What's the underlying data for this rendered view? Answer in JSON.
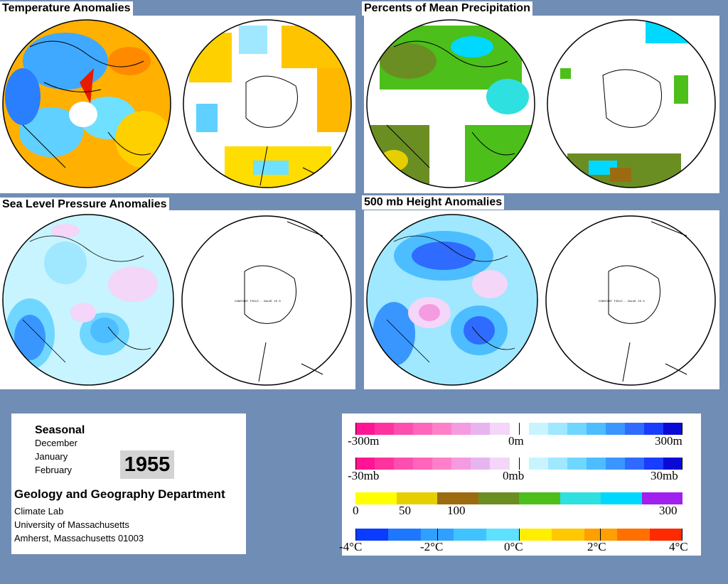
{
  "panels": {
    "temperature": {
      "title": "Temperature Anomalies"
    },
    "precipitation": {
      "title": "Percents of Mean Precipitation"
    },
    "slp": {
      "title": "Sea Level Pressure Anomalies",
      "south_note": "CONSTANT FIELD - VALUE IS 0"
    },
    "height500": {
      "title": "500 mb Height Anomalies",
      "south_note": "CONSTANT FIELD - VALUE IS 0"
    }
  },
  "info": {
    "period": "Seasonal",
    "months": [
      "December",
      "January",
      "February"
    ],
    "year": "1955",
    "department": "Geology and Geography Department",
    "address": [
      "Climate Lab",
      "University of Massachusetts",
      "Amherst, Massachusetts 01003"
    ]
  },
  "legend": {
    "height_bar": {
      "labels": [
        "-300m",
        "0m",
        "300m"
      ]
    },
    "pressure_bar": {
      "labels": [
        "-30mb",
        "0mb",
        "30mb"
      ]
    },
    "precip_bar": {
      "labels": [
        "0",
        "50",
        "100",
        "300"
      ]
    },
    "temp_bar": {
      "labels": [
        "-4°C",
        "-2°C",
        "0°C",
        "2°C",
        "4°C"
      ]
    },
    "colors": {
      "background": "#6f8db5",
      "anomaly_scale": [
        "#ff1493",
        "#ff33a0",
        "#ff4fae",
        "#ff66bb",
        "#ff80c8",
        "#f59be0",
        "#e8b4f0",
        "#f3d6f8",
        "#ffffff",
        "#c8f4ff",
        "#9fe8ff",
        "#6fd6ff",
        "#4cbdff",
        "#3a96ff",
        "#2f6bff",
        "#1a3cff",
        "#0a0ad6"
      ],
      "precip_scale": [
        "#ffff00",
        "#e6cf00",
        "#9c6b10",
        "#6b8e23",
        "#4cbf1a",
        "#2fe0e0",
        "#00d8ff",
        "#a020f0"
      ],
      "temp_scale": [
        "#0a3cff",
        "#1e78ff",
        "#2fa0ff",
        "#3fc4ff",
        "#5ee0ff",
        "#ffee00",
        "#ffc800",
        "#ff9f00",
        "#ff7000",
        "#ff2a00"
      ]
    }
  }
}
